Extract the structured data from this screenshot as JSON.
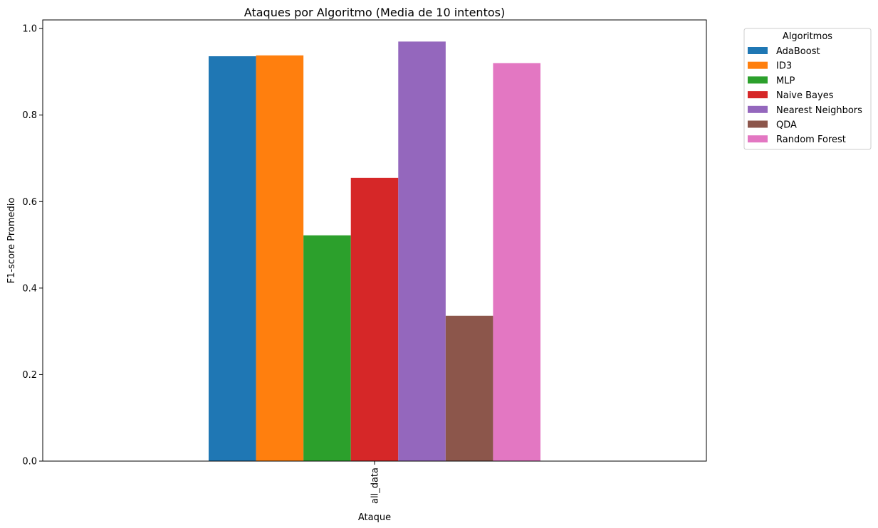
{
  "chart_data": {
    "type": "bar",
    "title": "Ataques por Algoritmo (Media de 10 intentos)",
    "xlabel": "Ataque",
    "ylabel": "F1-score Promedio",
    "categories": [
      "all_data"
    ],
    "ylim": [
      0,
      1.02
    ],
    "yticks": [
      0.0,
      0.2,
      0.4,
      0.6,
      0.8,
      1.0
    ],
    "ytick_labels": [
      "0.0",
      "0.2",
      "0.4",
      "0.6",
      "0.8",
      "1.0"
    ],
    "grid": false,
    "legend": {
      "title": "Algoritmos",
      "placement": "outside-top-right"
    },
    "series": [
      {
        "name": "AdaBoost",
        "values": [
          0.936
        ],
        "color": "#1f77b4"
      },
      {
        "name": "ID3",
        "values": [
          0.938
        ],
        "color": "#ff7f0e"
      },
      {
        "name": "MLP",
        "values": [
          0.522
        ],
        "color": "#2ca02c"
      },
      {
        "name": "Naive Bayes",
        "values": [
          0.655
        ],
        "color": "#d62728"
      },
      {
        "name": "Nearest Neighbors",
        "values": [
          0.97
        ],
        "color": "#9467bd"
      },
      {
        "name": "QDA",
        "values": [
          0.336
        ],
        "color": "#8c564b"
      },
      {
        "name": "Random Forest",
        "values": [
          0.92
        ],
        "color": "#e377c2"
      }
    ]
  }
}
